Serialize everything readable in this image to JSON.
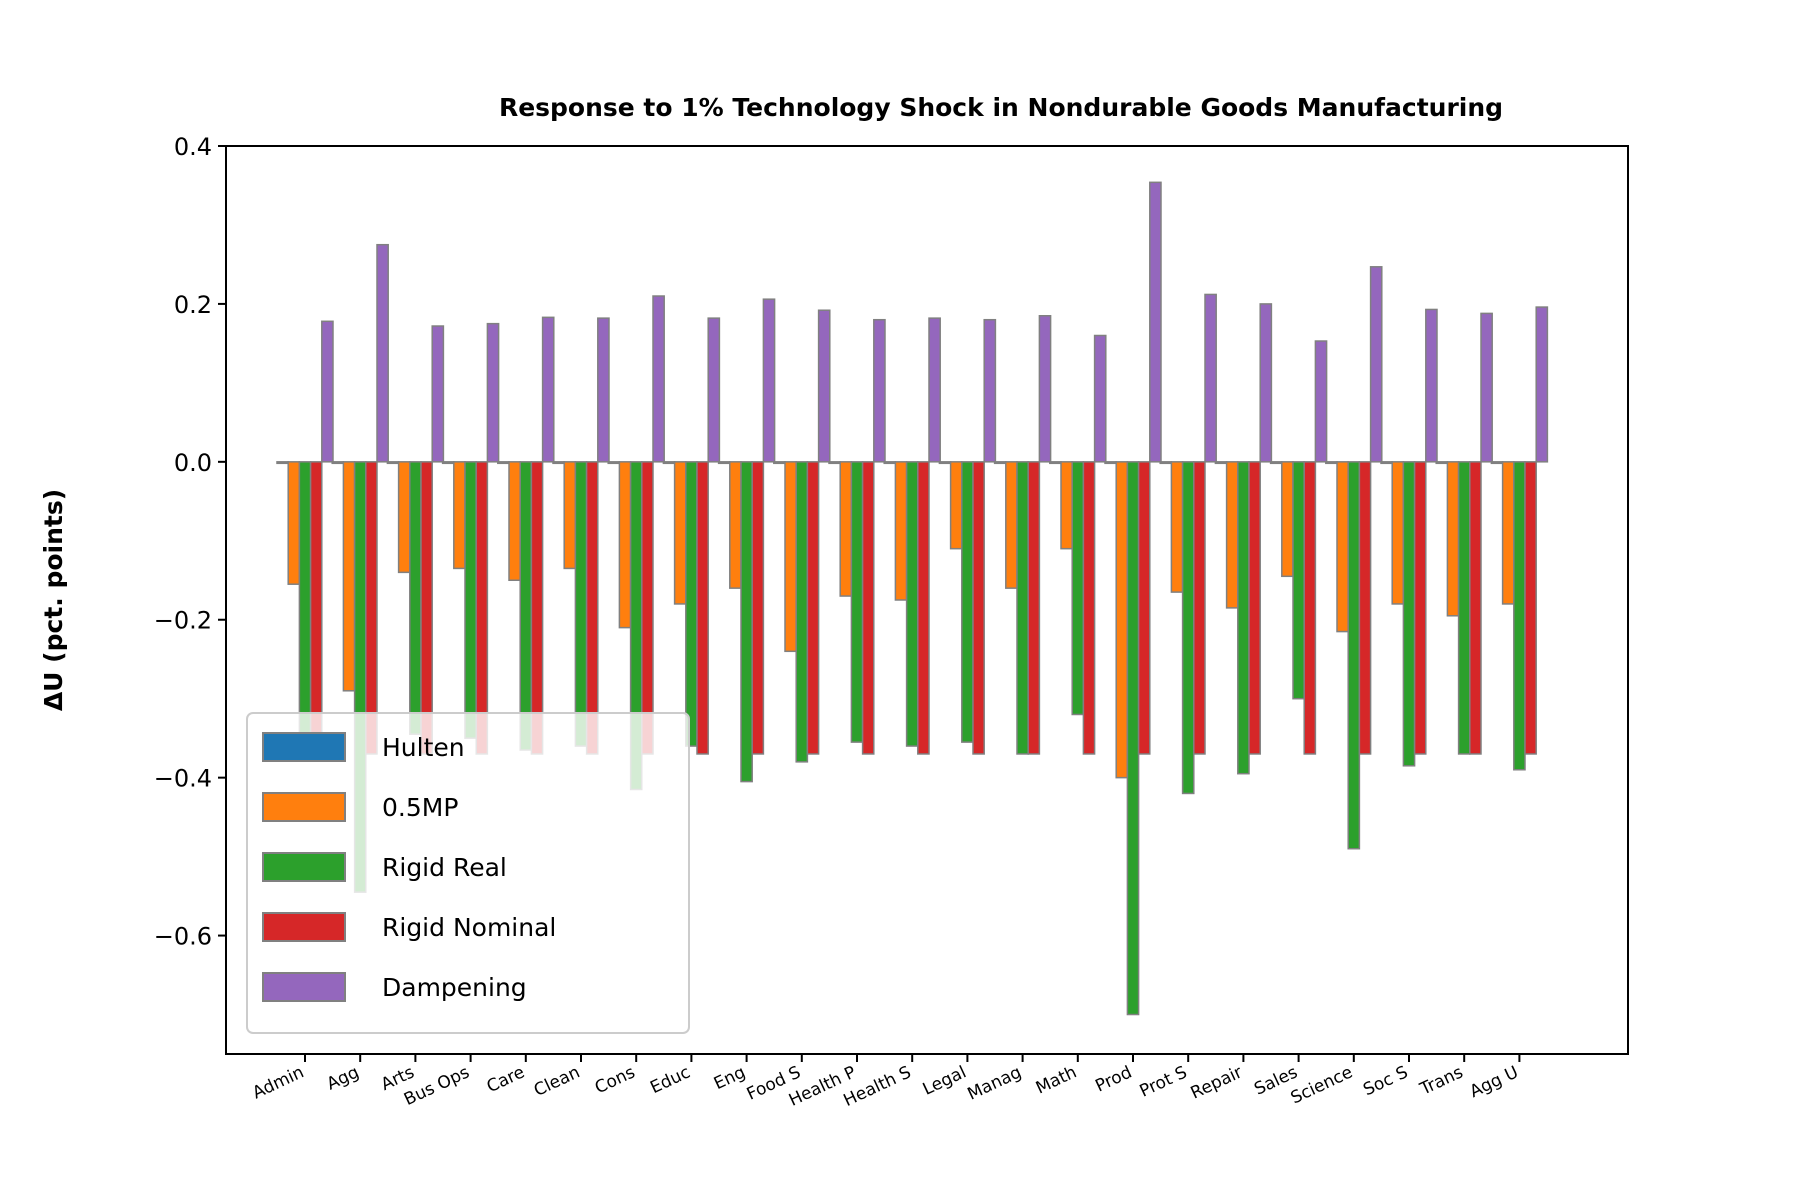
{
  "chart_data": {
    "type": "bar",
    "title": "Response to 1% Technology Shock in Nondurable Goods Manufacturing",
    "xlabel": "",
    "ylabel": "ΔU  (pct. points)",
    "ylim": [
      -0.75,
      0.4
    ],
    "yticks": [
      0.4,
      0.2,
      0.0,
      -0.2,
      -0.4,
      -0.6
    ],
    "ytick_labels": [
      "0.4",
      "0.2",
      "0.0",
      "−0.2",
      "−0.4",
      "−0.6"
    ],
    "grid": false,
    "legend_position": "lower-left",
    "categories": [
      "Admin",
      "Agg",
      "Arts",
      "Bus Ops",
      "Care",
      "Clean",
      "Cons",
      "Educ",
      "Eng",
      "Food S",
      "Health P",
      "Health S",
      "Legal",
      "Manag",
      "Math",
      "Prod",
      "Prot S",
      "Repair",
      "Sales",
      "Science",
      "Soc S",
      "Trans",
      "Agg U"
    ],
    "series": [
      {
        "name": "Hulten",
        "color": "#1f77b4",
        "values": [
          0,
          0,
          0,
          0,
          0,
          0,
          0,
          0,
          0,
          0,
          0,
          0,
          0,
          0,
          0,
          0,
          0,
          0,
          0,
          0,
          0,
          0,
          0
        ]
      },
      {
        "name": "0.5MP",
        "color": "#ff7f0e",
        "values": [
          -0.155,
          -0.29,
          -0.14,
          -0.135,
          -0.15,
          -0.135,
          -0.21,
          -0.18,
          -0.16,
          -0.24,
          -0.17,
          -0.175,
          -0.11,
          -0.16,
          -0.11,
          -0.4,
          -0.165,
          -0.185,
          -0.145,
          -0.215,
          -0.18,
          -0.195,
          -0.18
        ]
      },
      {
        "name": "Rigid Real",
        "color": "#2ca02c",
        "values": [
          -0.355,
          -0.545,
          -0.345,
          -0.35,
          -0.365,
          -0.36,
          -0.415,
          -0.36,
          -0.405,
          -0.38,
          -0.355,
          -0.36,
          -0.355,
          -0.37,
          -0.32,
          -0.7,
          -0.42,
          -0.395,
          -0.3,
          -0.49,
          -0.385,
          -0.37,
          -0.39
        ]
      },
      {
        "name": "Rigid Nominal",
        "color": "#d62728",
        "values": [
          -0.37,
          -0.37,
          -0.37,
          -0.37,
          -0.37,
          -0.37,
          -0.37,
          -0.37,
          -0.37,
          -0.37,
          -0.37,
          -0.37,
          -0.37,
          -0.37,
          -0.37,
          -0.37,
          -0.37,
          -0.37,
          -0.37,
          -0.37,
          -0.37,
          -0.37,
          -0.37
        ]
      },
      {
        "name": "Dampening",
        "color": "#9467bd",
        "values": [
          0.178,
          0.275,
          0.172,
          0.175,
          0.183,
          0.182,
          0.21,
          0.182,
          0.206,
          0.192,
          0.18,
          0.182,
          0.18,
          0.185,
          0.16,
          0.354,
          0.212,
          0.2,
          0.153,
          0.247,
          0.193,
          0.188,
          0.196
        ]
      }
    ],
    "bar_edge_color": "#808080"
  }
}
